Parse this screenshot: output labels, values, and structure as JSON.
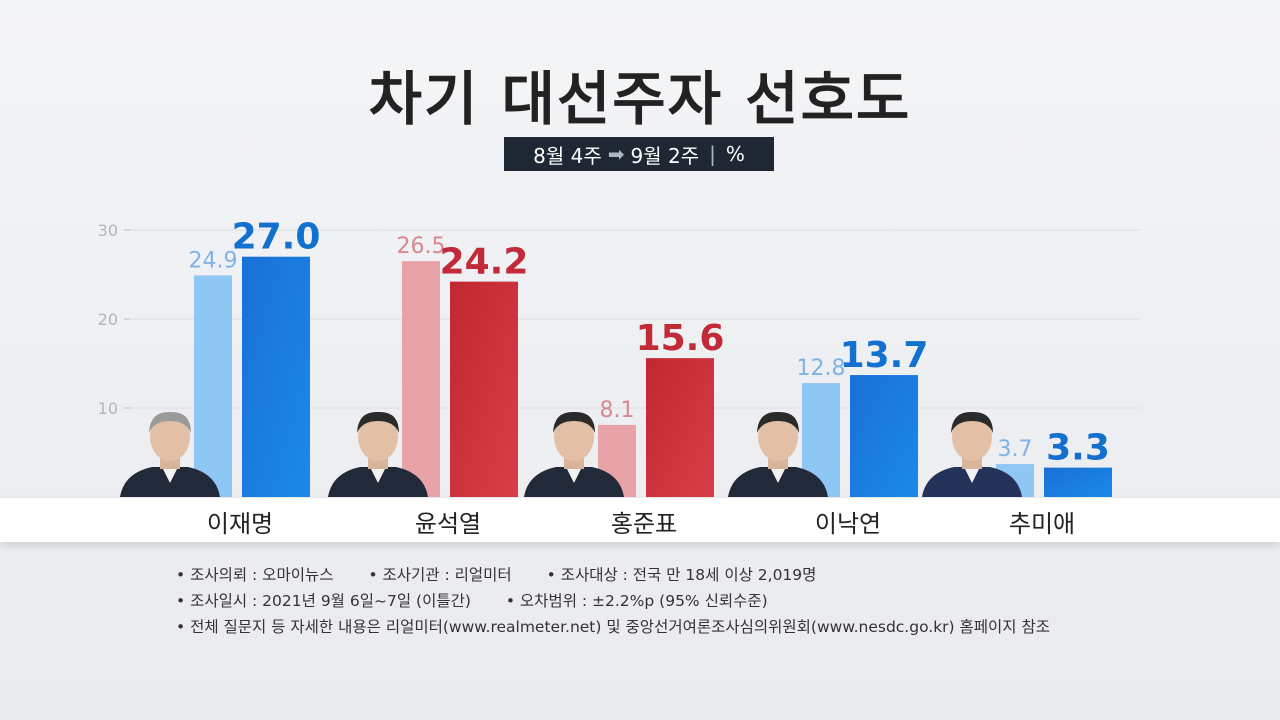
{
  "title": "차기 대선주자 선호도",
  "period": {
    "from": "8월 4주",
    "to": "9월 2주",
    "unit": "%"
  },
  "colors": {
    "blue_prev": "#8ec6f4",
    "blue_curr": "#1677d9",
    "red_prev": "#e8a3a9",
    "red_curr": "#c92d3a",
    "blue_label_prev": "#7fb3e6",
    "blue_label_curr": "#1270cf",
    "red_label_prev": "#d98890",
    "red_label_curr": "#c12a36"
  },
  "chart_data": {
    "type": "bar",
    "title": "차기 대선주자 선호도",
    "categories": [
      "이재명",
      "윤석열",
      "홍준표",
      "이낙연",
      "추미애"
    ],
    "series": [
      {
        "name": "8월 4주",
        "values": [
          24.9,
          26.5,
          8.1,
          12.8,
          3.7
        ]
      },
      {
        "name": "9월 2주",
        "values": [
          27.0,
          24.2,
          15.6,
          13.7,
          3.3
        ]
      }
    ],
    "value_labels_prev": [
      "24.9",
      "26.5",
      "8.1",
      "12.8",
      "3.7"
    ],
    "value_labels_curr": [
      "27.0",
      "24.2",
      "15.6",
      "13.7",
      "3.3"
    ],
    "bar_colors": [
      "blue",
      "red",
      "red",
      "blue",
      "blue"
    ],
    "yticks": [
      "10",
      "20",
      "30"
    ],
    "ylim": [
      0,
      30
    ],
    "grid": true
  },
  "notes": {
    "line1": [
      "• 조사의뢰 : 오마이뉴스",
      "• 조사기관 : 리얼미터",
      "• 조사대상 : 전국 만 18세 이상 2,019명"
    ],
    "line2": [
      "• 조사일시 : 2021년 9월 6일~7일 (이틀간)",
      "• 오차범위 : ±2.2%p (95% 신뢰수준)"
    ],
    "line3": "• 전체 질문지 등 자세한 내용은 리얼미터(www.realmeter.net) 및 중앙선거여론조사심의위원회(www.nesdc.go.kr) 홈페이지 참조"
  }
}
